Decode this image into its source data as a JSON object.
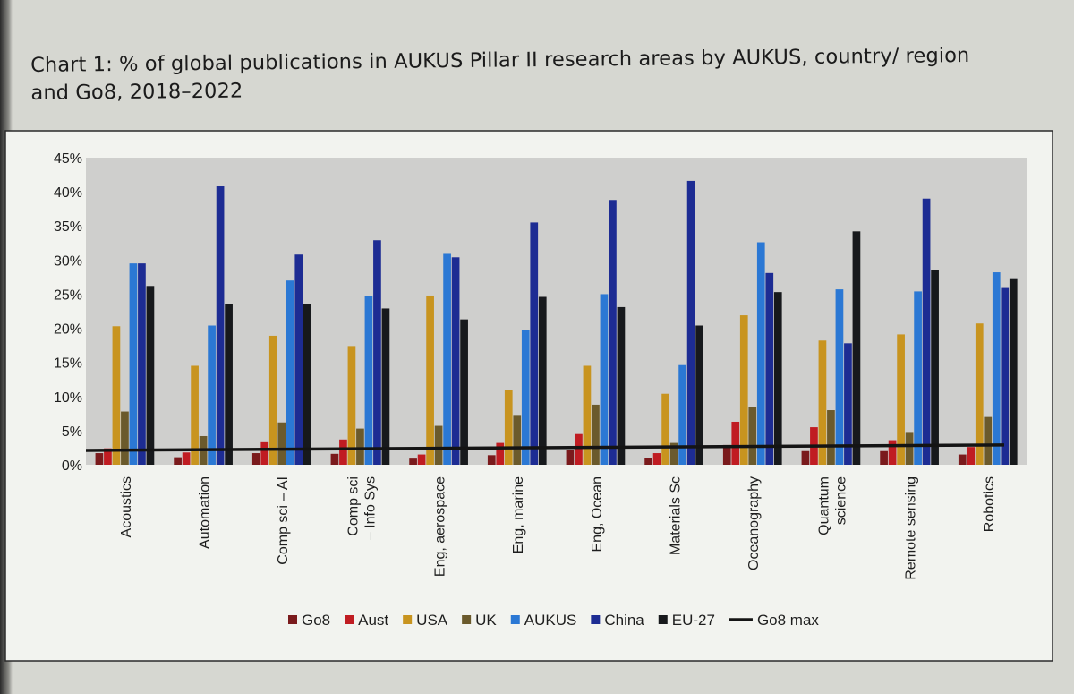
{
  "title": "Chart 1: % of global publications in AUKUS Pillar II research areas by AUKUS, country/ region and Go8, 2018–2022",
  "chart_data": {
    "type": "bar",
    "title": "Chart 1: % of global publications in AUKUS Pillar II research areas by AUKUS, country/ region and Go8, 2018–2022",
    "xlabel": "",
    "ylabel": "",
    "ylim": [
      0,
      45
    ],
    "yticks": [
      {
        "value": 0,
        "label": "0%"
      },
      {
        "value": 5,
        "label": "5%"
      },
      {
        "value": 10,
        "label": "10%"
      },
      {
        "value": 15,
        "label": "15%"
      },
      {
        "value": 20,
        "label": "20%"
      },
      {
        "value": 25,
        "label": "25%"
      },
      {
        "value": 30,
        "label": "30%"
      },
      {
        "value": 35,
        "label": "35%"
      },
      {
        "value": 40,
        "label": "40%"
      },
      {
        "value": 45,
        "label": "45%"
      }
    ],
    "categories": [
      [
        "Acoustics"
      ],
      [
        "Automation"
      ],
      [
        "Comp sci – AI"
      ],
      [
        "Comp sci",
        "– Info Sys"
      ],
      [
        "Eng, aerospace"
      ],
      [
        "Eng, marine"
      ],
      [
        "Eng, Ocean"
      ],
      [
        "Materials Sc"
      ],
      [
        "Oceanography"
      ],
      [
        "Quantum",
        "science"
      ],
      [
        "Remote sensing"
      ],
      [
        "Robotics"
      ]
    ],
    "series": [
      {
        "name": "Go8",
        "color": "#7a1a1c",
        "values": [
          1.7,
          1.1,
          1.7,
          1.6,
          0.9,
          1.4,
          2.1,
          1.0,
          2.9,
          2.0,
          2.0,
          1.5
        ]
      },
      {
        "name": "Aust",
        "color": "#c01c22",
        "values": [
          2.4,
          1.8,
          3.3,
          3.7,
          1.5,
          3.2,
          4.5,
          1.7,
          6.3,
          5.5,
          3.6,
          2.6
        ]
      },
      {
        "name": "USA",
        "color": "#c8941f",
        "values": [
          20.3,
          14.5,
          18.9,
          17.4,
          24.8,
          10.9,
          14.5,
          10.4,
          21.9,
          18.2,
          19.1,
          20.7
        ]
      },
      {
        "name": "UK",
        "color": "#6b5a2c",
        "values": [
          7.8,
          4.2,
          6.2,
          5.3,
          5.7,
          7.3,
          8.8,
          3.2,
          8.5,
          8.0,
          4.8,
          7.0
        ]
      },
      {
        "name": "AUKUS",
        "color": "#2b78d4",
        "values": [
          29.5,
          20.4,
          27.0,
          24.7,
          30.9,
          19.8,
          25.0,
          14.6,
          32.6,
          25.7,
          25.4,
          28.2
        ]
      },
      {
        "name": "China",
        "color": "#1d2c93",
        "values": [
          29.5,
          40.8,
          30.8,
          32.9,
          30.4,
          35.5,
          38.8,
          41.6,
          28.1,
          17.8,
          39.0,
          25.9
        ]
      },
      {
        "name": "EU-27",
        "color": "#17191c",
        "values": [
          26.2,
          23.5,
          23.5,
          22.9,
          21.3,
          24.6,
          23.1,
          20.4,
          25.3,
          34.2,
          28.6,
          27.2
        ]
      }
    ],
    "line_series": {
      "name": "Go8 max",
      "color": "#141414",
      "start": 2.1,
      "end": 2.9
    },
    "legend": {
      "position": "bottom"
    },
    "grid": false
  }
}
